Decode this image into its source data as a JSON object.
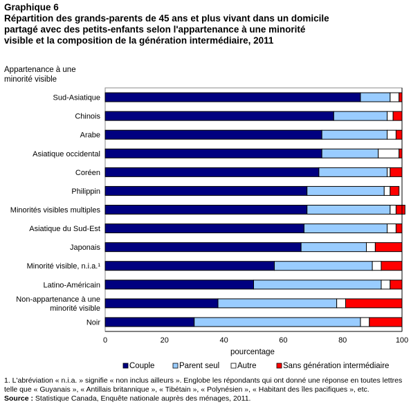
{
  "chart_data": {
    "type": "bar",
    "orientation": "horizontal",
    "stacked": true,
    "title_line1": "Graphique 6",
    "title": "Répartition des grands-parents de 45 ans et plus vivant dans un domicile partagé avec des petits-enfants selon l'appartenance à une minorité visible et la composition de la génération intermédiaire, 2011",
    "ylabel": "Appartenance à une minorité visible",
    "xlabel": "pourcentage",
    "xlim": [
      0,
      100
    ],
    "xticks": [
      "0",
      "20",
      "40",
      "60",
      "80",
      "100"
    ],
    "grid": false,
    "legend_placement": "bottom",
    "categories": [
      "Sud-Asiatique",
      "Chinois",
      "Arabe",
      "Asiatique occidental",
      "Coréen",
      "Philippin",
      "Minorités visibles multiples",
      "Asiatique du Sud-Est",
      "Japonais",
      "Minorité visible, n.i.a.¹",
      "Latino-Américain",
      "Non-appartenance à une minorité visible",
      "Noir"
    ],
    "series": [
      {
        "name": "Couple",
        "color": "#000080",
        "values": [
          86,
          77,
          73,
          73,
          72,
          68,
          68,
          67,
          66,
          57,
          50,
          38,
          30
        ]
      },
      {
        "name": "Parent seul",
        "color": "#99ccff",
        "values": [
          10,
          18,
          22,
          19,
          23,
          26,
          28,
          28,
          22,
          33,
          43,
          40,
          56
        ]
      },
      {
        "name": "Autre",
        "color": "#ffffff",
        "values": [
          3,
          2,
          3,
          7,
          1,
          2,
          2,
          3,
          3,
          3,
          3,
          3,
          3
        ]
      },
      {
        "name": "Sans génération intermédiaire",
        "color": "#ff0000",
        "values": [
          1,
          3,
          2,
          1,
          4,
          3,
          3,
          2,
          9,
          7,
          4,
          19,
          11
        ]
      }
    ]
  },
  "footnote": "1. L'abréviation « n.i.a. » signifie « non inclus ailleurs ». Englobe les répondants qui ont donné une réponse en toutes lettres telle que « Guyanais », « Antillais britannique », « Tibétain », « Polynésien », « Habitant des îles pacifiques », etc.",
  "source_label": "Source :",
  "source_text": " Statistique Canada, Enquête nationale auprès des ménages, 2011."
}
